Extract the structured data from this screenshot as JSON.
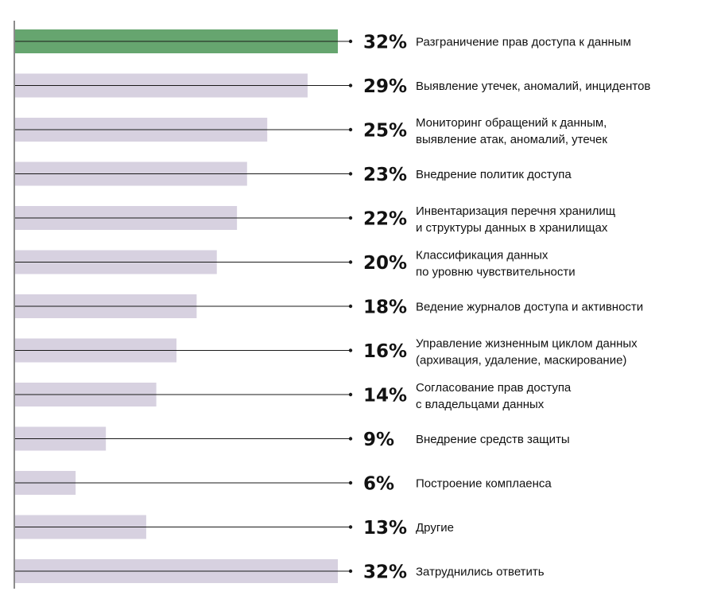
{
  "chart_data": {
    "type": "bar",
    "orientation": "horizontal",
    "title": "",
    "xlabel": "",
    "ylabel": "",
    "unit": "%",
    "xlim": [
      0,
      32
    ],
    "grid": false,
    "categories": [
      [
        "Разграничение прав доступа к данным"
      ],
      [
        "Выявление утечек, аномалий, инцидентов"
      ],
      [
        "Мониторинг обращений к данным,",
        "выявление атак, аномалий, утечек"
      ],
      [
        "Внедрение политик доступа"
      ],
      [
        "Инвентаризация перечня хранилищ",
        "и структуры данных в хранилищах"
      ],
      [
        "Классификация данных",
        "по уровню чувствительности"
      ],
      [
        "Ведение журналов доступа и активности"
      ],
      [
        "Управление жизненным циклом данных",
        "(архивация, удаление, маскирование)"
      ],
      [
        "Согласование прав доступа",
        "с владельцами данных"
      ],
      [
        "Внедрение средств защиты"
      ],
      [
        "Построение комплаенса"
      ],
      [
        "Другие"
      ],
      [
        "Затруднились ответить"
      ]
    ],
    "values": [
      32,
      29,
      25,
      23,
      22,
      20,
      18,
      16,
      14,
      9,
      6,
      13,
      32
    ],
    "value_labels": [
      "32%",
      "29%",
      "25%",
      "23%",
      "22%",
      "20%",
      "18%",
      "16%",
      "14%",
      "9%",
      "6%",
      "13%",
      "32%"
    ],
    "highlight_index": 0
  },
  "colors": {
    "highlight": "#66a56f",
    "bar": "#d7d1e0",
    "line": "#1a1a1a",
    "text": "#111111"
  }
}
